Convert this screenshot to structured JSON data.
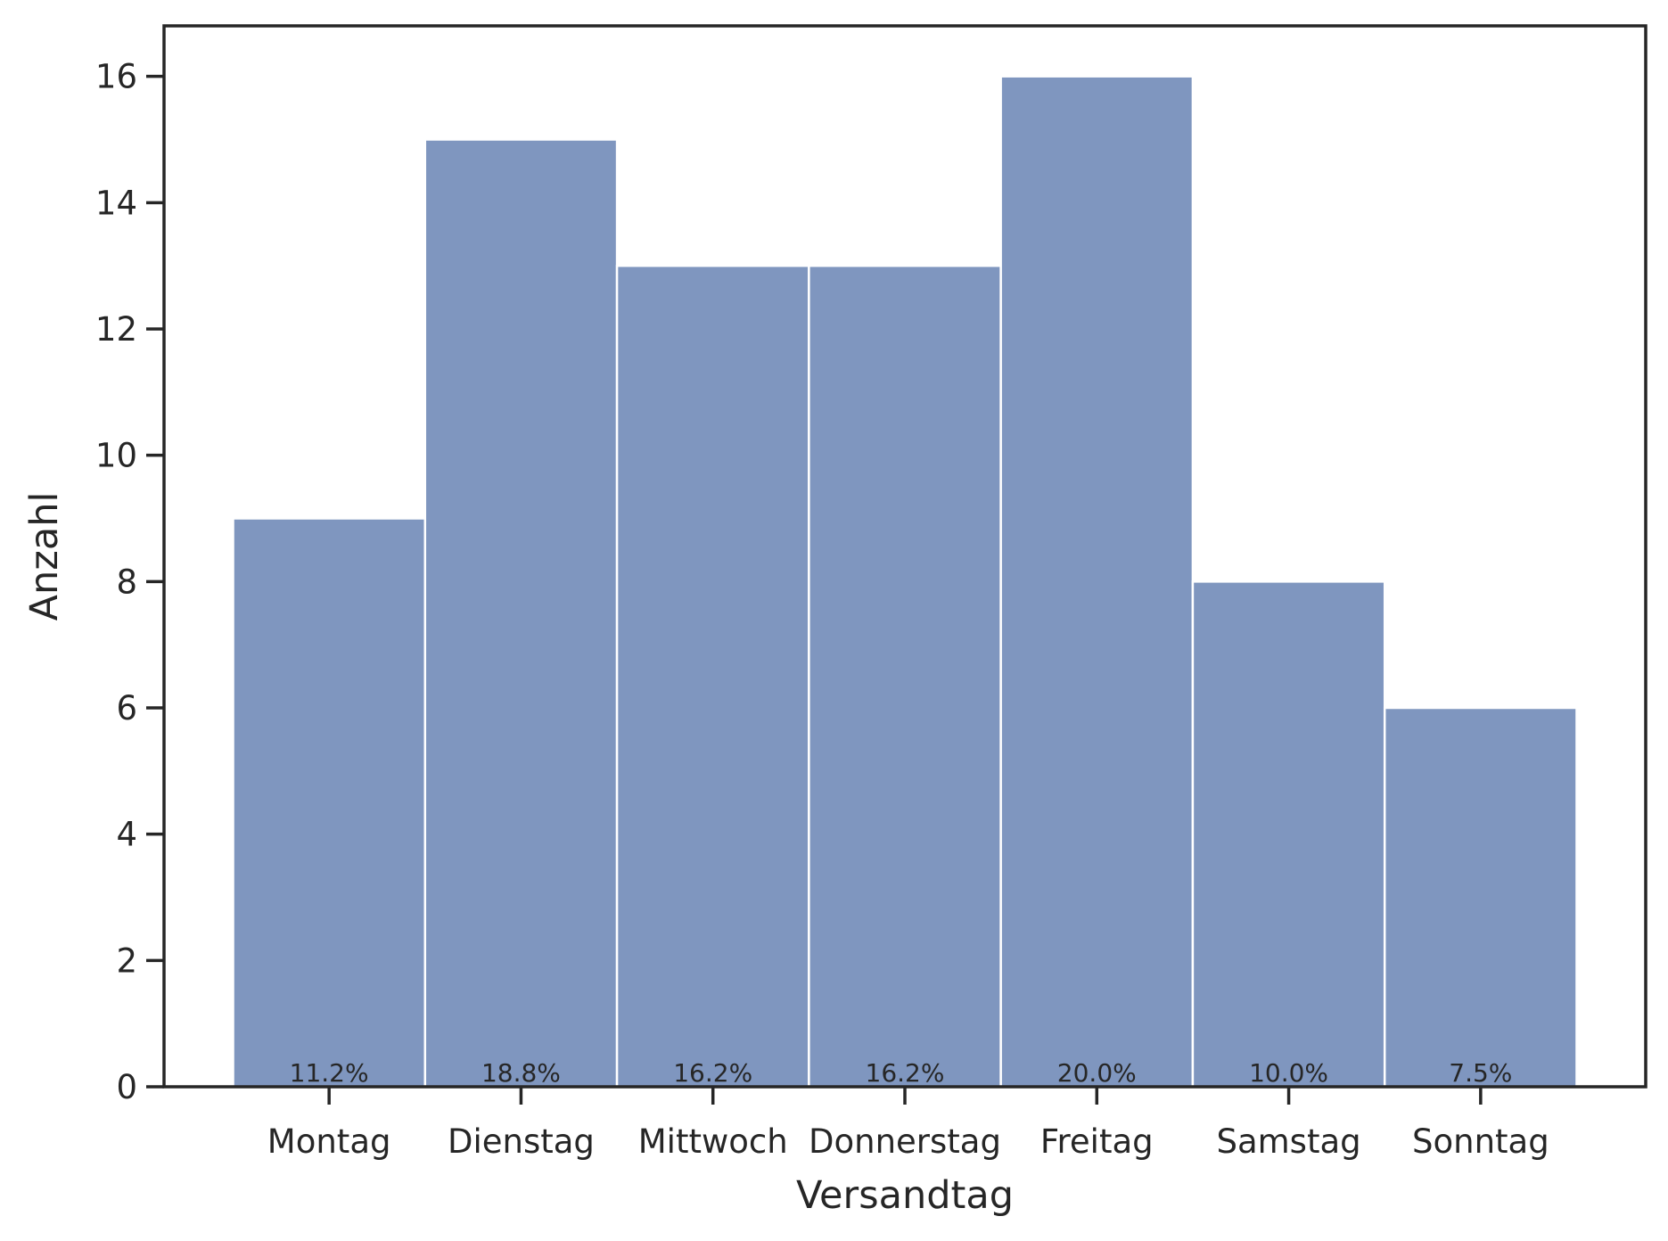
{
  "chart_data": {
    "type": "bar",
    "title": "",
    "xlabel": "Versandtag",
    "ylabel": "Anzahl",
    "categories": [
      "Montag",
      "Dienstag",
      "Mittwoch",
      "Donnerstag",
      "Freitag",
      "Samstag",
      "Sonntag"
    ],
    "values": [
      9,
      15,
      13,
      13,
      16,
      8,
      6
    ],
    "data_labels": [
      "11.2%",
      "18.8%",
      "16.2%",
      "16.2%",
      "20.0%",
      "10.0%",
      "7.5%"
    ],
    "ylim": [
      0,
      16.8
    ],
    "yticks": [
      0,
      2,
      4,
      6,
      8,
      10,
      12,
      14,
      16
    ],
    "grid": false,
    "legend": "none",
    "colors": {
      "bar": "#7f96bf",
      "axis": "#262626",
      "background": "#ffffff"
    }
  }
}
